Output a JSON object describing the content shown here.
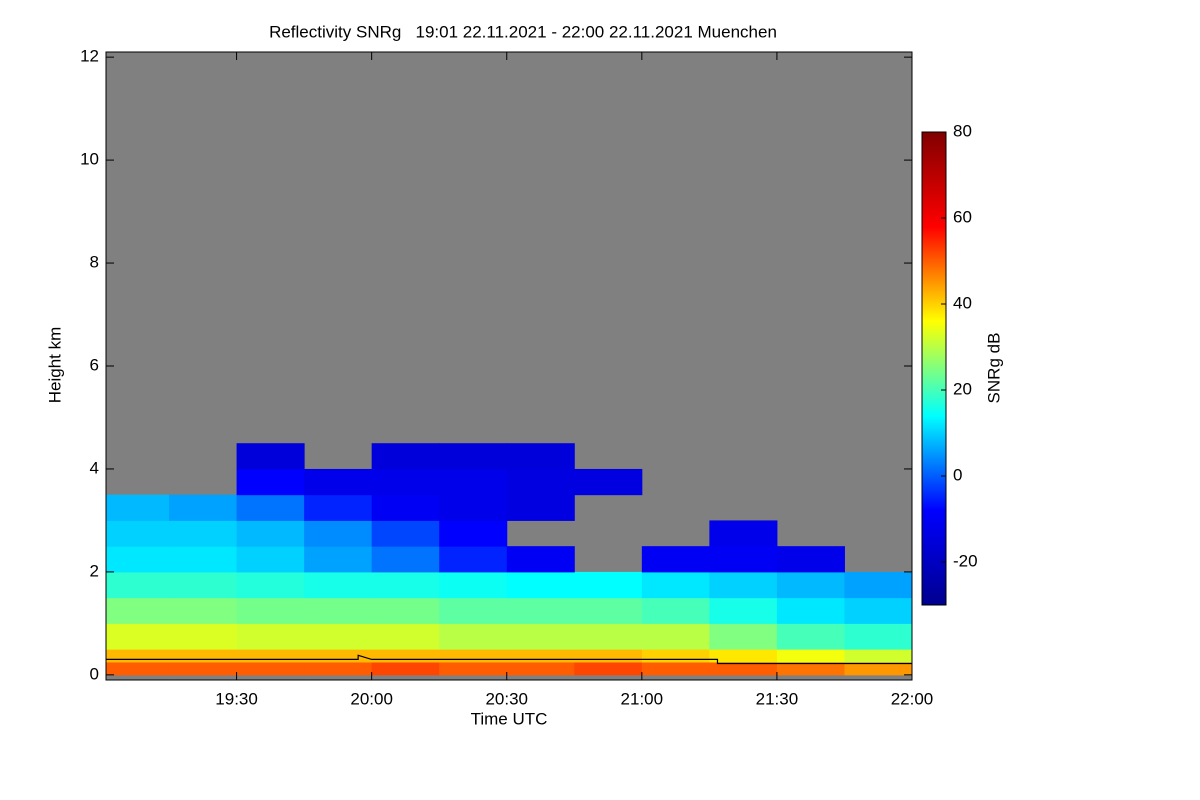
{
  "chart_data": {
    "type": "heatmap",
    "title": "Reflectivity SNRg   19:01 22.11.2021 - 22:00 22.11.2021 Muenchen",
    "xlabel": "Time UTC",
    "ylabel": "Height km",
    "colorbar_label": "SNRg dB",
    "xlim": [
      19.0167,
      22.0
    ],
    "ylim": [
      -0.1,
      12.1
    ],
    "xticks": [
      {
        "value": 19.5,
        "label": "19:30"
      },
      {
        "value": 20.0,
        "label": "20:00"
      },
      {
        "value": 20.5,
        "label": "20:30"
      },
      {
        "value": 21.0,
        "label": "21:00"
      },
      {
        "value": 21.5,
        "label": "21:30"
      },
      {
        "value": 22.0,
        "label": "22:00"
      }
    ],
    "yticks": [
      0,
      2,
      4,
      6,
      8,
      10,
      12
    ],
    "zlim": [
      -30,
      80
    ],
    "zticks": [
      -20,
      0,
      20,
      40,
      60,
      80
    ],
    "colormap": [
      "#00008f",
      "#0000ff",
      "#00ffff",
      "#ffff00",
      "#ff0000",
      "#800000"
    ],
    "background_color": "#808080",
    "x_edges": [
      19.0167,
      19.25,
      19.5,
      19.75,
      20.0,
      20.25,
      20.5,
      20.75,
      21.0,
      21.25,
      21.5,
      21.75,
      22.0
    ],
    "y_edges": [
      0,
      0.25,
      0.5,
      1,
      1.5,
      2,
      2.5,
      3,
      3.5,
      4,
      4.5
    ],
    "values": [
      [
        50,
        50,
        50,
        50,
        52,
        50,
        50,
        52,
        50,
        50,
        48,
        45
      ],
      [
        42,
        42,
        42,
        42,
        42,
        42,
        42,
        42,
        40,
        38,
        35,
        32
      ],
      [
        33,
        33,
        32,
        32,
        32,
        30,
        30,
        30,
        30,
        25,
        20,
        18
      ],
      [
        25,
        25,
        24,
        24,
        24,
        22,
        22,
        22,
        20,
        16,
        12,
        10
      ],
      [
        18,
        18,
        17,
        16,
        16,
        15,
        14,
        14,
        12,
        10,
        8,
        6
      ],
      [
        12,
        12,
        10,
        6,
        2,
        -5,
        -10,
        null,
        -10,
        -10,
        -12,
        null
      ],
      [
        10,
        10,
        8,
        4,
        -2,
        -8,
        null,
        null,
        null,
        -12,
        null,
        null
      ],
      [
        8,
        6,
        2,
        -5,
        -10,
        -12,
        -14,
        null,
        null,
        null,
        null,
        null
      ],
      [
        null,
        null,
        -8,
        -12,
        -12,
        -12,
        -14,
        -14,
        null,
        null,
        null,
        null
      ],
      [
        null,
        null,
        -15,
        null,
        -15,
        -15,
        -15,
        null,
        null,
        null,
        null,
        null
      ]
    ],
    "overlay_line": {
      "color": "#000000",
      "x": [
        19.0167,
        19.95,
        19.95,
        20.0,
        20.85,
        21.28,
        21.28,
        22.0
      ],
      "y": [
        0.3,
        0.3,
        0.38,
        0.3,
        0.3,
        0.3,
        0.22,
        0.22
      ]
    }
  }
}
